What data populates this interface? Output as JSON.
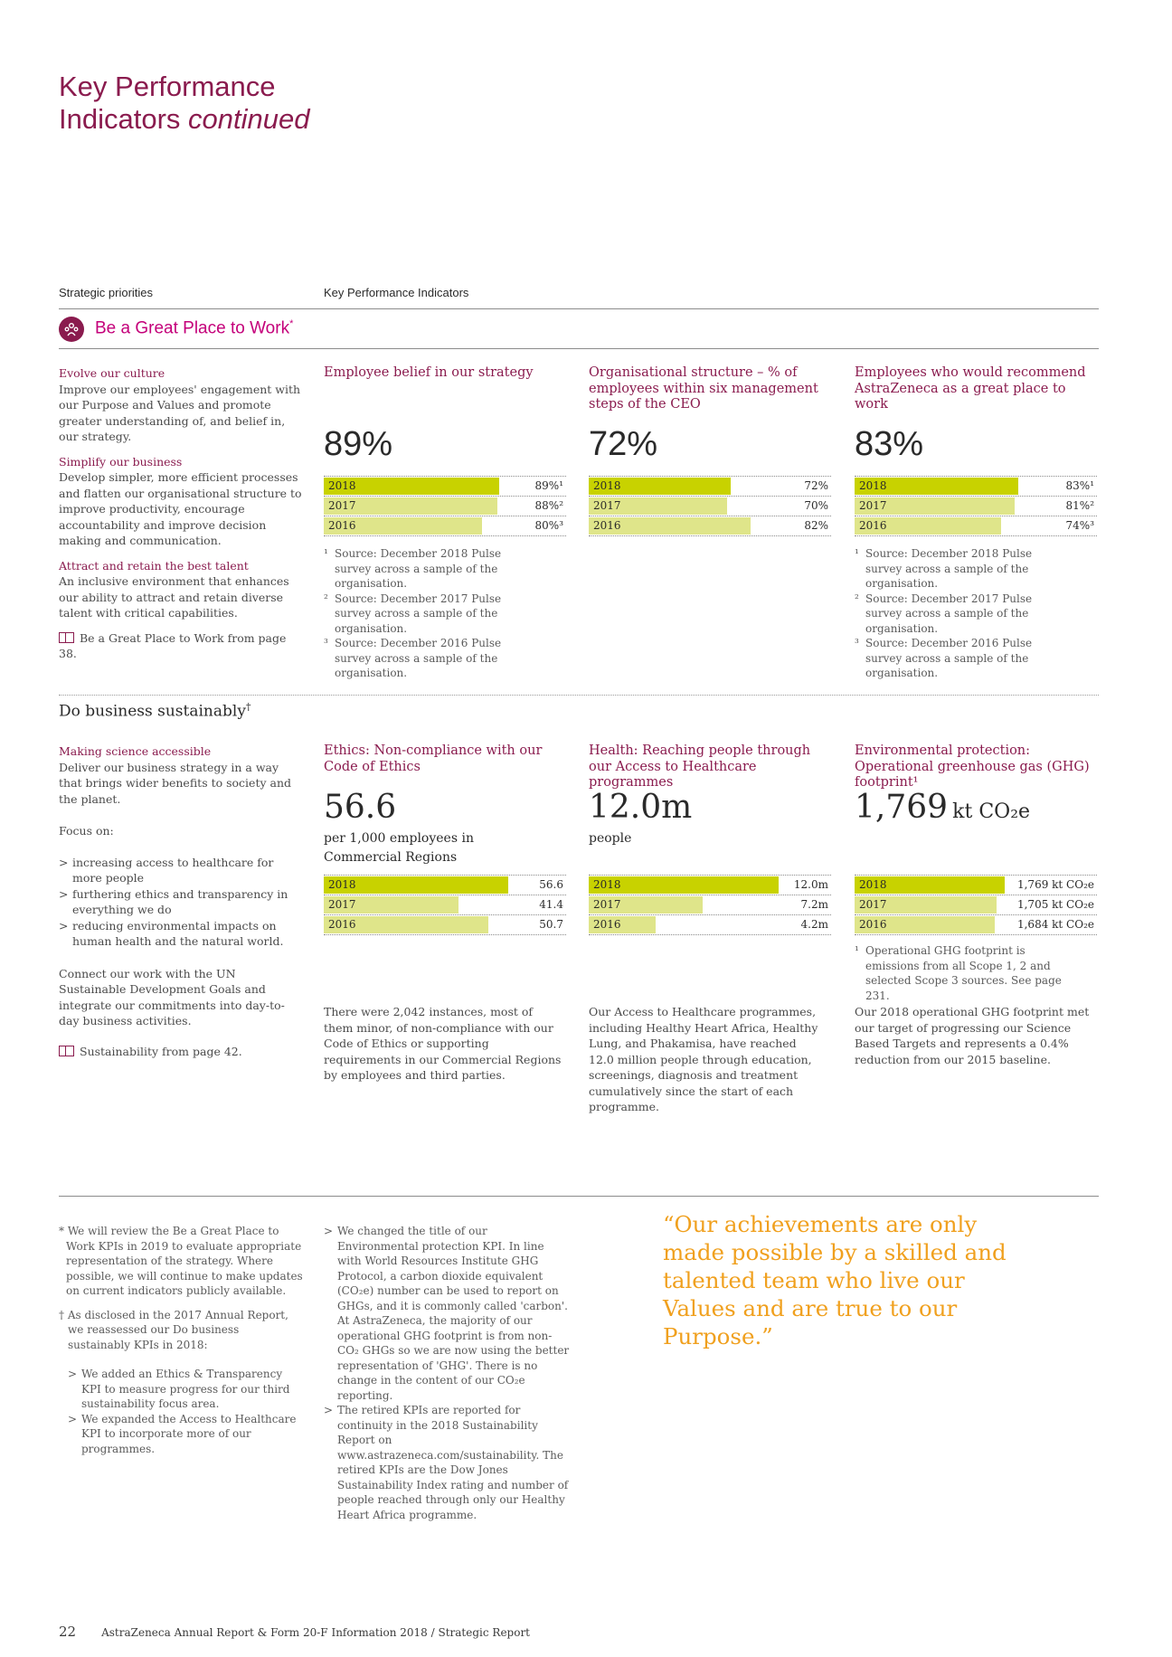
{
  "title": {
    "line1": "Key Performance",
    "line2": "Indicators",
    "italic": "continued"
  },
  "headers": {
    "left": "Strategic priorities",
    "right": "Key Performance Indicators"
  },
  "section1": {
    "title": "Be a Great Place to Work",
    "mark": "*",
    "icon": "people-circle-icon",
    "left": {
      "h1": "Evolve our culture",
      "p1": "Improve our employees' engagement with our Purpose and Values and promote greater understanding of, and belief in, our strategy.",
      "h2": "Simplify our business",
      "p2": "Develop simpler, more efficient processes and flatten our organisational structure to improve productivity, encourage accountability and improve decision making and communication.",
      "h3": "Attract and retain the best talent",
      "p3": "An inclusive environment that enhances our ability to attract and retain diverse talent with critical capabilities.",
      "link": "Be a Great Place to Work from page 38."
    },
    "kpis": [
      {
        "title": "Employee belief in our strategy",
        "big": "89%",
        "bars": [
          {
            "year": "2018",
            "label": "89%¹",
            "value": 89
          },
          {
            "year": "2017",
            "label": "88%²",
            "value": 88
          },
          {
            "year": "2016",
            "label": "80%³",
            "value": 80
          }
        ],
        "footnotes": [
          {
            "n": "¹",
            "t": "Source: December 2018 Pulse survey across a sample of the organisation."
          },
          {
            "n": "²",
            "t": "Source: December 2017 Pulse survey across a sample of the organisation."
          },
          {
            "n": "³",
            "t": "Source: December 2016 Pulse survey across a sample of the organisation."
          }
        ]
      },
      {
        "title": "Organisational structure – % of employees within six management steps of the CEO",
        "big": "72%",
        "bars": [
          {
            "year": "2018",
            "label": "72%",
            "value": 72
          },
          {
            "year": "2017",
            "label": "70%",
            "value": 70
          },
          {
            "year": "2016",
            "label": "82%",
            "value": 82
          }
        ],
        "footnotes": []
      },
      {
        "title": "Employees who would recommend AstraZeneca as a great place to work",
        "big": "83%",
        "bars": [
          {
            "year": "2018",
            "label": "83%¹",
            "value": 83
          },
          {
            "year": "2017",
            "label": "81%²",
            "value": 81
          },
          {
            "year": "2016",
            "label": "74%³",
            "value": 74
          }
        ],
        "footnotes": [
          {
            "n": "¹",
            "t": "Source: December 2018 Pulse survey across a sample of the organisation."
          },
          {
            "n": "²",
            "t": "Source: December 2017 Pulse survey across a sample of the organisation."
          },
          {
            "n": "³",
            "t": "Source: December 2016 Pulse survey across a sample of the organisation."
          }
        ]
      }
    ]
  },
  "section2": {
    "title": "Do business sustainably",
    "mark": "†",
    "left": {
      "h1": "Making science accessible",
      "p1": "Deliver our business strategy in a way that brings wider benefits to society and the planet.",
      "focus": "Focus on:",
      "items": [
        "increasing access to healthcare for more people",
        "furthering ethics and transparency in everything we do",
        "reducing environmental impacts on human health and the natural world."
      ],
      "p2": "Connect our work with the UN Sustainable Development Goals and integrate our commitments into day-to-day business activities.",
      "link": "Sustainability from page 42."
    },
    "kpis": [
      {
        "title": "Ethics: Non-compliance with our Code of Ethics",
        "big": "56.6",
        "unit": "",
        "sub": "per 1,000 employees in Commercial Regions",
        "bars": [
          {
            "year": "2018",
            "label": "56.6",
            "value": 56.6
          },
          {
            "year": "2017",
            "label": "41.4",
            "value": 41.4
          },
          {
            "year": "2016",
            "label": "50.7",
            "value": 50.7
          }
        ],
        "footnotes": [],
        "body": "There were 2,042 instances, most of them minor, of non-compliance with our Code of Ethics or supporting requirements in our Commercial Regions by employees and third parties."
      },
      {
        "title": "Health: Reaching people through our Access to Healthcare programmes",
        "big": "12.0m",
        "unit": "",
        "sub": "people",
        "bars": [
          {
            "year": "2018",
            "label": "12.0m",
            "value": 12.0
          },
          {
            "year": "2017",
            "label": "7.2m",
            "value": 7.2
          },
          {
            "year": "2016",
            "label": "4.2m",
            "value": 4.2
          }
        ],
        "footnotes": [],
        "body": "Our Access to Healthcare programmes, including Healthy Heart Africa, Healthy Lung, and Phakamisa, have reached 12.0 million people through education, screenings, diagnosis and treatment cumulatively since the start of each programme."
      },
      {
        "title": "Environmental protection: Operational greenhouse gas (GHG) footprint¹",
        "big": "1,769",
        "unit": "kt CO₂e",
        "sub": "",
        "bars": [
          {
            "year": "2018",
            "label": "1,769 kt CO₂e",
            "value": 1769
          },
          {
            "year": "2017",
            "label": "1,705 kt CO₂e",
            "value": 1705
          },
          {
            "year": "2016",
            "label": "1,684 kt CO₂e",
            "value": 1684
          }
        ],
        "footnotes": [
          {
            "n": "¹",
            "t": "Operational GHG footprint is emissions from all Scope 1, 2 and selected Scope 3 sources. See page 231."
          }
        ],
        "body": "Our 2018 operational GHG footprint met our target of progressing our Science Based Targets and represents a 0.4% reduction from our 2015 baseline."
      }
    ]
  },
  "bottom": {
    "note1": "* We will review the Be a Great Place to Work KPIs in 2019 to evaluate appropriate representation of the strategy. Where possible, we will continue to make updates on current indicators publicly available.",
    "note2": "† As disclosed in the 2017 Annual Report, we reassessed our Do business sustainably KPIs in 2018:",
    "note2_items": [
      "We added an Ethics & Transparency KPI to measure progress for our third sustainability focus area.",
      "We expanded the Access to Healthcare KPI to incorporate more of our programmes."
    ],
    "col2_items": [
      "We changed the title of our Environmental protection KPI. In line with World Resources Institute GHG Protocol, a carbon dioxide equivalent (CO₂e) number can be used to report on GHGs, and it is commonly called 'carbon'. At AstraZeneca, the majority of our operational GHG footprint is from non-CO₂ GHGs so we are now using the better representation of 'GHG'. There is no change in the content of our CO₂e reporting.",
      "The retired KPIs are reported for continuity in the 2018 Sustainability Report on www.astrazeneca.com/sustainability. The retired KPIs are the Dow Jones Sustainability Index rating and number of people reached through only our Healthy Heart Africa programme."
    ],
    "quote": "“Our achievements are only made possible by a skilled and talented team who live our Values and are true to our Purpose.”"
  },
  "footer": {
    "page": "22",
    "text": "AstraZeneca Annual Report & Form 20-F Information 2018 / Strategic Report"
  },
  "colors": {
    "plum": "#8a1b4e",
    "magenta": "#c4007a",
    "bar_current": "#c8d200",
    "bar_prior": "#dfe58a",
    "quote": "#f0a01e"
  }
}
